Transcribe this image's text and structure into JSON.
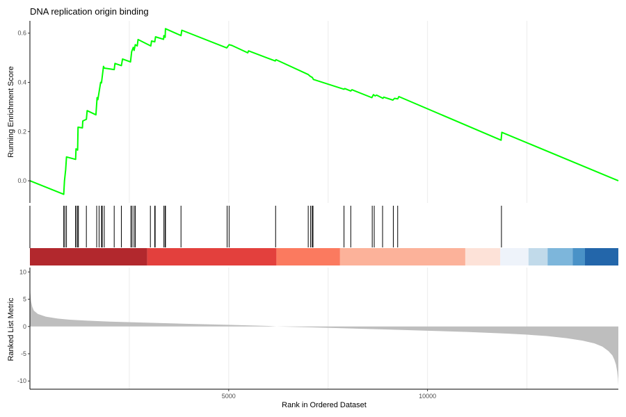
{
  "chart_data": {
    "type": "line",
    "title": "DNA replication origin binding",
    "xlabel": "Rank in Ordered Dataset",
    "x_ticks": [
      5000,
      10000
    ],
    "xlim": [
      0,
      14800
    ],
    "colors": {
      "enrichment_line": "#00ff00",
      "hit_line": "#000000",
      "ranked_fill": "#bebebe",
      "grid": "#ebebeb",
      "axis": "#000000"
    },
    "panels": {
      "enrichment": {
        "ylabel": "Running Enrichment Score",
        "y_ticks": [
          0.0,
          0.2,
          0.4,
          0.6
        ],
        "y_tick_labels": [
          "0.0",
          "0.2",
          "0.4",
          "0.6"
        ],
        "ylim": [
          -0.09,
          0.65
        ],
        "series": [
          {
            "x": [
              0,
              850,
              870,
              900,
              920,
              1150,
              1160,
              1200,
              1210,
              1320,
              1330,
              1420,
              1440,
              1660,
              1690,
              1710,
              1780,
              1800,
              1850,
              1870,
              2120,
              2140,
              2300,
              2330,
              2530,
              2560,
              2600,
              2620,
              2650,
              2700,
              2720,
              3040,
              3060,
              3140,
              3160,
              3360,
              3370,
              3400,
              3410,
              3800,
              3820,
              4950,
              5010,
              5080,
              5480,
              5500,
              6170,
              6190,
              7000,
              7050,
              7100,
              7110,
              7120,
              7130,
              7900,
              7920,
              8070,
              8100,
              8600,
              8640,
              8680,
              8720,
              8880,
              8900,
              9130,
              9170,
              9250,
              9280,
              11850,
              11870,
              14800
            ],
            "y": [
              0.0,
              -0.055,
              0.0,
              0.045,
              0.097,
              0.087,
              0.13,
              0.125,
              0.218,
              0.215,
              0.243,
              0.25,
              0.285,
              0.268,
              0.338,
              0.33,
              0.4,
              0.398,
              0.465,
              0.458,
              0.452,
              0.477,
              0.468,
              0.495,
              0.483,
              0.525,
              0.542,
              0.53,
              0.553,
              0.548,
              0.574,
              0.548,
              0.568,
              0.565,
              0.585,
              0.575,
              0.59,
              0.583,
              0.618,
              0.59,
              0.612,
              0.54,
              0.553,
              0.55,
              0.52,
              0.528,
              0.487,
              0.492,
              0.432,
              0.425,
              0.42,
              0.418,
              0.415,
              0.412,
              0.372,
              0.375,
              0.365,
              0.37,
              0.338,
              0.35,
              0.345,
              0.348,
              0.335,
              0.34,
              0.328,
              0.335,
              0.333,
              0.342,
              0.165,
              0.197,
              0.0
            ]
          }
        ]
      },
      "hits": {
        "positions": [
          850,
          880,
          920,
          1150,
          1160,
          1200,
          1220,
          1420,
          1680,
          1740,
          1800,
          1820,
          1870,
          2120,
          2300,
          2540,
          2570,
          2620,
          2650,
          3030,
          3140,
          3150,
          3370,
          3400,
          3410,
          3800,
          4960,
          5010,
          6180,
          7000,
          7060,
          7100,
          7120,
          7900,
          8070,
          8610,
          8660,
          8870,
          9140,
          9250,
          11860
        ]
      },
      "colorbar": {
        "segments": [
          {
            "start": 0,
            "end": 2950,
            "color": "#b2282d"
          },
          {
            "start": 2950,
            "end": 6200,
            "color": "#e3403d"
          },
          {
            "start": 6200,
            "end": 7800,
            "color": "#fb7a5f"
          },
          {
            "start": 7800,
            "end": 10950,
            "color": "#fcb29a"
          },
          {
            "start": 10950,
            "end": 11830,
            "color": "#fde2d8"
          },
          {
            "start": 11830,
            "end": 12540,
            "color": "#eef3fa"
          },
          {
            "start": 12540,
            "end": 13020,
            "color": "#c1daea"
          },
          {
            "start": 13020,
            "end": 13650,
            "color": "#7db6db"
          },
          {
            "start": 13650,
            "end": 13960,
            "color": "#4a92c7"
          },
          {
            "start": 13960,
            "end": 14800,
            "color": "#2366aa"
          }
        ]
      },
      "ranked": {
        "ylabel": "Ranked List Metric",
        "y_ticks": [
          10,
          5,
          0,
          -5,
          -10
        ],
        "y_tick_labels": [
          "10",
          "5",
          "0",
          "-5",
          "-10"
        ],
        "ylim": [
          -11.5,
          10.8
        ],
        "area": {
          "x": [
            0,
            10,
            30,
            60,
            100,
            200,
            400,
            700,
            1000,
            1500,
            2000,
            3000,
            4000,
            5000,
            6000,
            6200,
            7000,
            8000,
            9000,
            10000,
            11000,
            12000,
            12500,
            13000,
            13500,
            13900,
            14200,
            14400,
            14550,
            14650,
            14700,
            14740,
            14770,
            14790,
            14800
          ],
          "y": [
            10.2,
            6.2,
            4.6,
            3.6,
            2.9,
            2.3,
            1.8,
            1.45,
            1.25,
            1.05,
            0.9,
            0.68,
            0.48,
            0.3,
            0.1,
            0.0,
            -0.15,
            -0.35,
            -0.55,
            -0.78,
            -1.0,
            -1.3,
            -1.5,
            -1.75,
            -2.15,
            -2.6,
            -3.1,
            -3.7,
            -4.5,
            -5.3,
            -6.1,
            -7.0,
            -8.2,
            -9.5,
            -10.8
          ]
        }
      }
    }
  }
}
